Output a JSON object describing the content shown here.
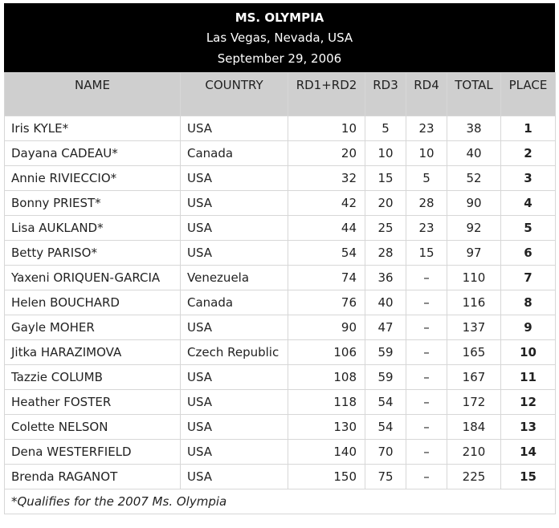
{
  "header": {
    "title": "MS. OLYMPIA",
    "location": "Las Vegas, Nevada, USA",
    "date": "September 29, 2006"
  },
  "columns": [
    "NAME",
    "COUNTRY",
    "RD1+RD2",
    "RD3",
    "RD4",
    "TOTAL",
    "PLACE"
  ],
  "rows": [
    {
      "name": "Iris KYLE*",
      "country": "USA",
      "rd12": "10",
      "rd3": "5",
      "rd4": "23",
      "total": "38",
      "place": "1"
    },
    {
      "name": "Dayana CADEAU*",
      "country": "Canada",
      "rd12": "20",
      "rd3": "10",
      "rd4": "10",
      "total": "40",
      "place": "2"
    },
    {
      "name": "Annie RIVIECCIO*",
      "country": "USA",
      "rd12": "32",
      "rd3": "15",
      "rd4": "5",
      "total": "52",
      "place": "3"
    },
    {
      "name": "Bonny PRIEST*",
      "country": "USA",
      "rd12": "42",
      "rd3": "20",
      "rd4": "28",
      "total": "90",
      "place": "4"
    },
    {
      "name": "Lisa AUKLAND*",
      "country": "USA",
      "rd12": "44",
      "rd3": "25",
      "rd4": "23",
      "total": "92",
      "place": "5"
    },
    {
      "name": "Betty PARISO*",
      "country": "USA",
      "rd12": "54",
      "rd3": "28",
      "rd4": "15",
      "total": "97",
      "place": "6"
    },
    {
      "name": "Yaxeni ORIQUEN-GARCIA",
      "country": "Venezuela",
      "rd12": "74",
      "rd3": "36",
      "rd4": "–",
      "total": "110",
      "place": "7"
    },
    {
      "name": "Helen BOUCHARD",
      "country": "Canada",
      "rd12": "76",
      "rd3": "40",
      "rd4": "–",
      "total": "116",
      "place": "8"
    },
    {
      "name": "Gayle MOHER",
      "country": "USA",
      "rd12": "90",
      "rd3": "47",
      "rd4": "–",
      "total": "137",
      "place": "9"
    },
    {
      "name": "Jitka HARAZIMOVA",
      "country": "Czech Republic",
      "rd12": "106",
      "rd3": "59",
      "rd4": "–",
      "total": "165",
      "place": "10"
    },
    {
      "name": "Tazzie COLUMB",
      "country": "USA",
      "rd12": "108",
      "rd3": "59",
      "rd4": "–",
      "total": "167",
      "place": "11"
    },
    {
      "name": "Heather FOSTER",
      "country": "USA",
      "rd12": "118",
      "rd3": "54",
      "rd4": "–",
      "total": "172",
      "place": "12"
    },
    {
      "name": "Colette NELSON",
      "country": "USA",
      "rd12": "130",
      "rd3": "54",
      "rd4": "–",
      "total": "184",
      "place": "13"
    },
    {
      "name": "Dena WESTERFIELD",
      "country": "USA",
      "rd12": "140",
      "rd3": "70",
      "rd4": "–",
      "total": "210",
      "place": "14"
    },
    {
      "name": "Brenda RAGANOT",
      "country": "USA",
      "rd12": "150",
      "rd3": "75",
      "rd4": "–",
      "total": "225",
      "place": "15"
    }
  ],
  "footnote": "*Qualifies for the 2007 Ms. Olympia"
}
